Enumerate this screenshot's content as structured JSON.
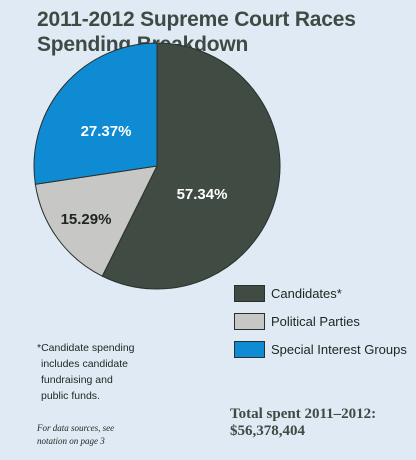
{
  "chart_data": {
    "type": "pie",
    "title": "2011-2012 Supreme Court Races Spending Breakdown",
    "title_lines": [
      "2011-2012 Supreme Court Races",
      "Spending Breakdown"
    ],
    "slices": [
      {
        "name": "Candidates",
        "legend_label": "Candidates*",
        "value": 57.34,
        "label": "57.34%",
        "color": "#3f4b43"
      },
      {
        "name": "Political Parties",
        "legend_label": "Political Parties",
        "value": 15.29,
        "label": "15.29%",
        "color": "#c7c7c5"
      },
      {
        "name": "Special Interest Groups",
        "legend_label": "Special Interest Groups",
        "value": 27.37,
        "label": "27.37%",
        "color": "#0e8bd3"
      }
    ],
    "label_colors": [
      "#ffffff",
      "#1e2421",
      "#ffffff"
    ],
    "legend_position": "bottom-right"
  },
  "footnote_lines": [
    "*Candidate spending",
    "includes candidate",
    "fundraising and",
    "public funds."
  ],
  "sources_lines": [
    "For data sources, see",
    "notation on page 3"
  ],
  "total_lines": [
    "Total spent 2011–2012:",
    "$56,378,404"
  ]
}
